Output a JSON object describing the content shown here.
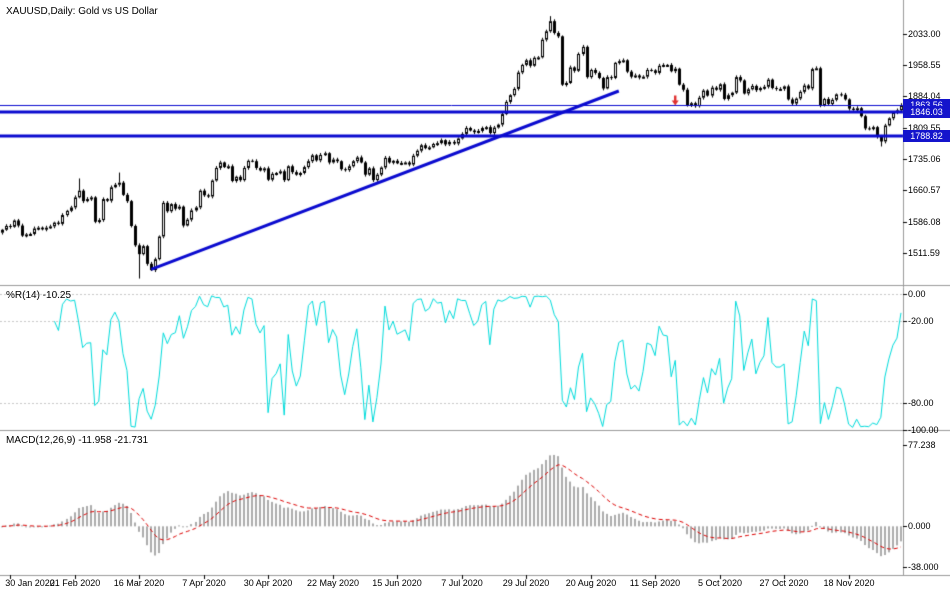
{
  "colors": {
    "background": "#FFFFFF",
    "foreground": "#000000",
    "grid": "#C8C8C8",
    "bull": "#FFFFFF",
    "bear": "#000000",
    "outline": "#000000",
    "hline": "#0A0ACF",
    "tag_bg": "#1414CC",
    "tag_text": "#FFFFFF",
    "wpr_line": "#00DCDC",
    "macd_hist": "#ABABAB",
    "macd_signal": "#DD0000",
    "sell_arrow": "#E03030",
    "separator": "#9A9A9A"
  },
  "chart_data": {
    "type": "candlestick",
    "title": "XAUUSD,Daily: Gold vs US Dollar",
    "symbol": "XAUUSD",
    "timeframe": "Daily",
    "ylim": [
      1438,
      2111
    ],
    "y_ticks": [
      "2033.00",
      "1958.55",
      "1884.04",
      "1809.55",
      "1735.06",
      "1660.57",
      "1586.08",
      "1511.59"
    ],
    "x_ticks": [
      {
        "label": "30 Jan 2020",
        "bar": 2
      },
      {
        "label": "21 Feb 2020",
        "bar": 18
      },
      {
        "label": "16 Mar 2020",
        "bar": 34
      },
      {
        "label": "7 Apr 2020",
        "bar": 50
      },
      {
        "label": "30 Apr 2020",
        "bar": 66
      },
      {
        "label": "22 May 2020",
        "bar": 82
      },
      {
        "label": "15 Jun 2020",
        "bar": 98
      },
      {
        "label": "7 Jul 2020",
        "bar": 114
      },
      {
        "label": "29 Jul 2020",
        "bar": 130
      },
      {
        "label": "20 Aug 2020",
        "bar": 146
      },
      {
        "label": "11 Sep 2020",
        "bar": 162
      },
      {
        "label": "5 Oct 2020",
        "bar": 178
      },
      {
        "label": "27 Oct 2020",
        "bar": 194
      },
      {
        "label": "18 Nov 2020",
        "bar": 210
      }
    ],
    "price_tags": [
      {
        "label": "1863.56",
        "price": 1863.56
      },
      {
        "label": "1846.03",
        "price": 1846.03
      },
      {
        "label": "1788.82",
        "price": 1788.82
      }
    ],
    "candles": {
      "first_open": 1560,
      "monthly_closes": [
        [
          1567,
          1576,
          1574,
          1589
        ],
        [
          1577,
          1553,
          1556,
          1557,
          1570,
          1572,
          1568,
          1572,
          1575,
          1584,
          1581,
          1602,
          1612,
          1620,
          1644,
          1660,
          1635,
          1640,
          1644,
          1586
        ],
        [
          1590,
          1640,
          1636,
          1668,
          1674,
          1679,
          1650,
          1635,
          1576,
          1530,
          1509,
          1528,
          1486,
          1471,
          1497,
          1551,
          1631,
          1611,
          1628,
          1617,
          1622,
          1577
        ],
        [
          1591,
          1613,
          1620,
          1660,
          1649,
          1646,
          1684,
          1714,
          1727,
          1716,
          1718,
          1683,
          1693,
          1685,
          1714,
          1731,
          1730,
          1714,
          1708,
          1713,
          1686
        ],
        [
          1700,
          1702,
          1706,
          1685,
          1718,
          1704,
          1698,
          1702,
          1716,
          1730,
          1744,
          1732,
          1745,
          1749,
          1727,
          1734,
          1730,
          1711,
          1709,
          1718,
          1730
        ],
        [
          1739,
          1727,
          1698,
          1713,
          1685,
          1698,
          1715,
          1738,
          1727,
          1731,
          1725,
          1726,
          1727,
          1722,
          1743,
          1755,
          1768,
          1761,
          1763,
          1771,
          1773,
          1780
        ],
        [
          1770,
          1776,
          1772,
          1784,
          1795,
          1809,
          1803,
          1799,
          1802,
          1809,
          1811,
          1797,
          1810,
          1817,
          1842,
          1871,
          1887,
          1902,
          1941,
          1959,
          1970,
          1957,
          1976
        ],
        [
          1977,
          2019,
          2039,
          2063,
          2035,
          2027,
          1912,
          1916,
          1953,
          1945,
          1985,
          2002,
          1930,
          1947,
          1940,
          1928,
          1903,
          1930,
          1928,
          1964,
          1968
        ],
        [
          1970,
          1943,
          1931,
          1934,
          1929,
          1931,
          1947,
          1946,
          1940,
          1957,
          1959,
          1959,
          1944,
          1950,
          1912,
          1900,
          1863,
          1868,
          1861,
          1881,
          1898,
          1886
        ],
        [
          1905,
          1900,
          1913,
          1878,
          1887,
          1893,
          1930,
          1922,
          1891,
          1901,
          1909,
          1899,
          1904,
          1907,
          1924,
          1904,
          1902,
          1902,
          1908,
          1877,
          1867,
          1879
        ],
        [
          1895,
          1910,
          1903,
          1949,
          1951,
          1863,
          1878,
          1866,
          1876,
          1889,
          1888,
          1877,
          1855,
          1852,
          1856,
          1837,
          1808,
          1807,
          1811,
          1788,
          1777
        ],
        [
          1815,
          1832,
          1845,
          1851,
          1863.56
        ]
      ],
      "wick_overrides": {
        "19": {
          "high": 1689
        },
        "29": {
          "high": 1703
        },
        "34": {
          "low": 1451
        },
        "136": {
          "high": 2075
        },
        "218": {
          "low": 1765
        },
        "223": {
          "high": 1868
        }
      }
    },
    "objects": {
      "hlines": [
        {
          "price": 1863.56,
          "width": 1
        },
        {
          "price": 1846.03,
          "width": 3
        },
        {
          "price": 1788.82,
          "width": 3
        }
      ],
      "trendline": {
        "bar1": 37,
        "price1": 1473,
        "bar2": 153,
        "price2": 1897,
        "width": 3
      },
      "sell_arrow": {
        "bar": 167,
        "price": 1872
      }
    },
    "indicators": [
      {
        "name": "Williams %R",
        "label": "%R(14) -10.25",
        "period": 14,
        "current_value": -10.25,
        "levels": [
          0,
          -20,
          -80,
          -100
        ],
        "y_ticks": [
          "0.00",
          "-20.00",
          "-80.00",
          "-100.00"
        ]
      },
      {
        "name": "MACD",
        "label": "MACD(12,26,9) -11.958 -21.731",
        "fast": 12,
        "slow": 26,
        "signal": 9,
        "current_macd": -11.958,
        "current_signal": -21.731,
        "y_ticks": [
          "77.238",
          "0.000",
          "-38.000"
        ],
        "ylim": [
          -45,
          90
        ]
      }
    ]
  }
}
